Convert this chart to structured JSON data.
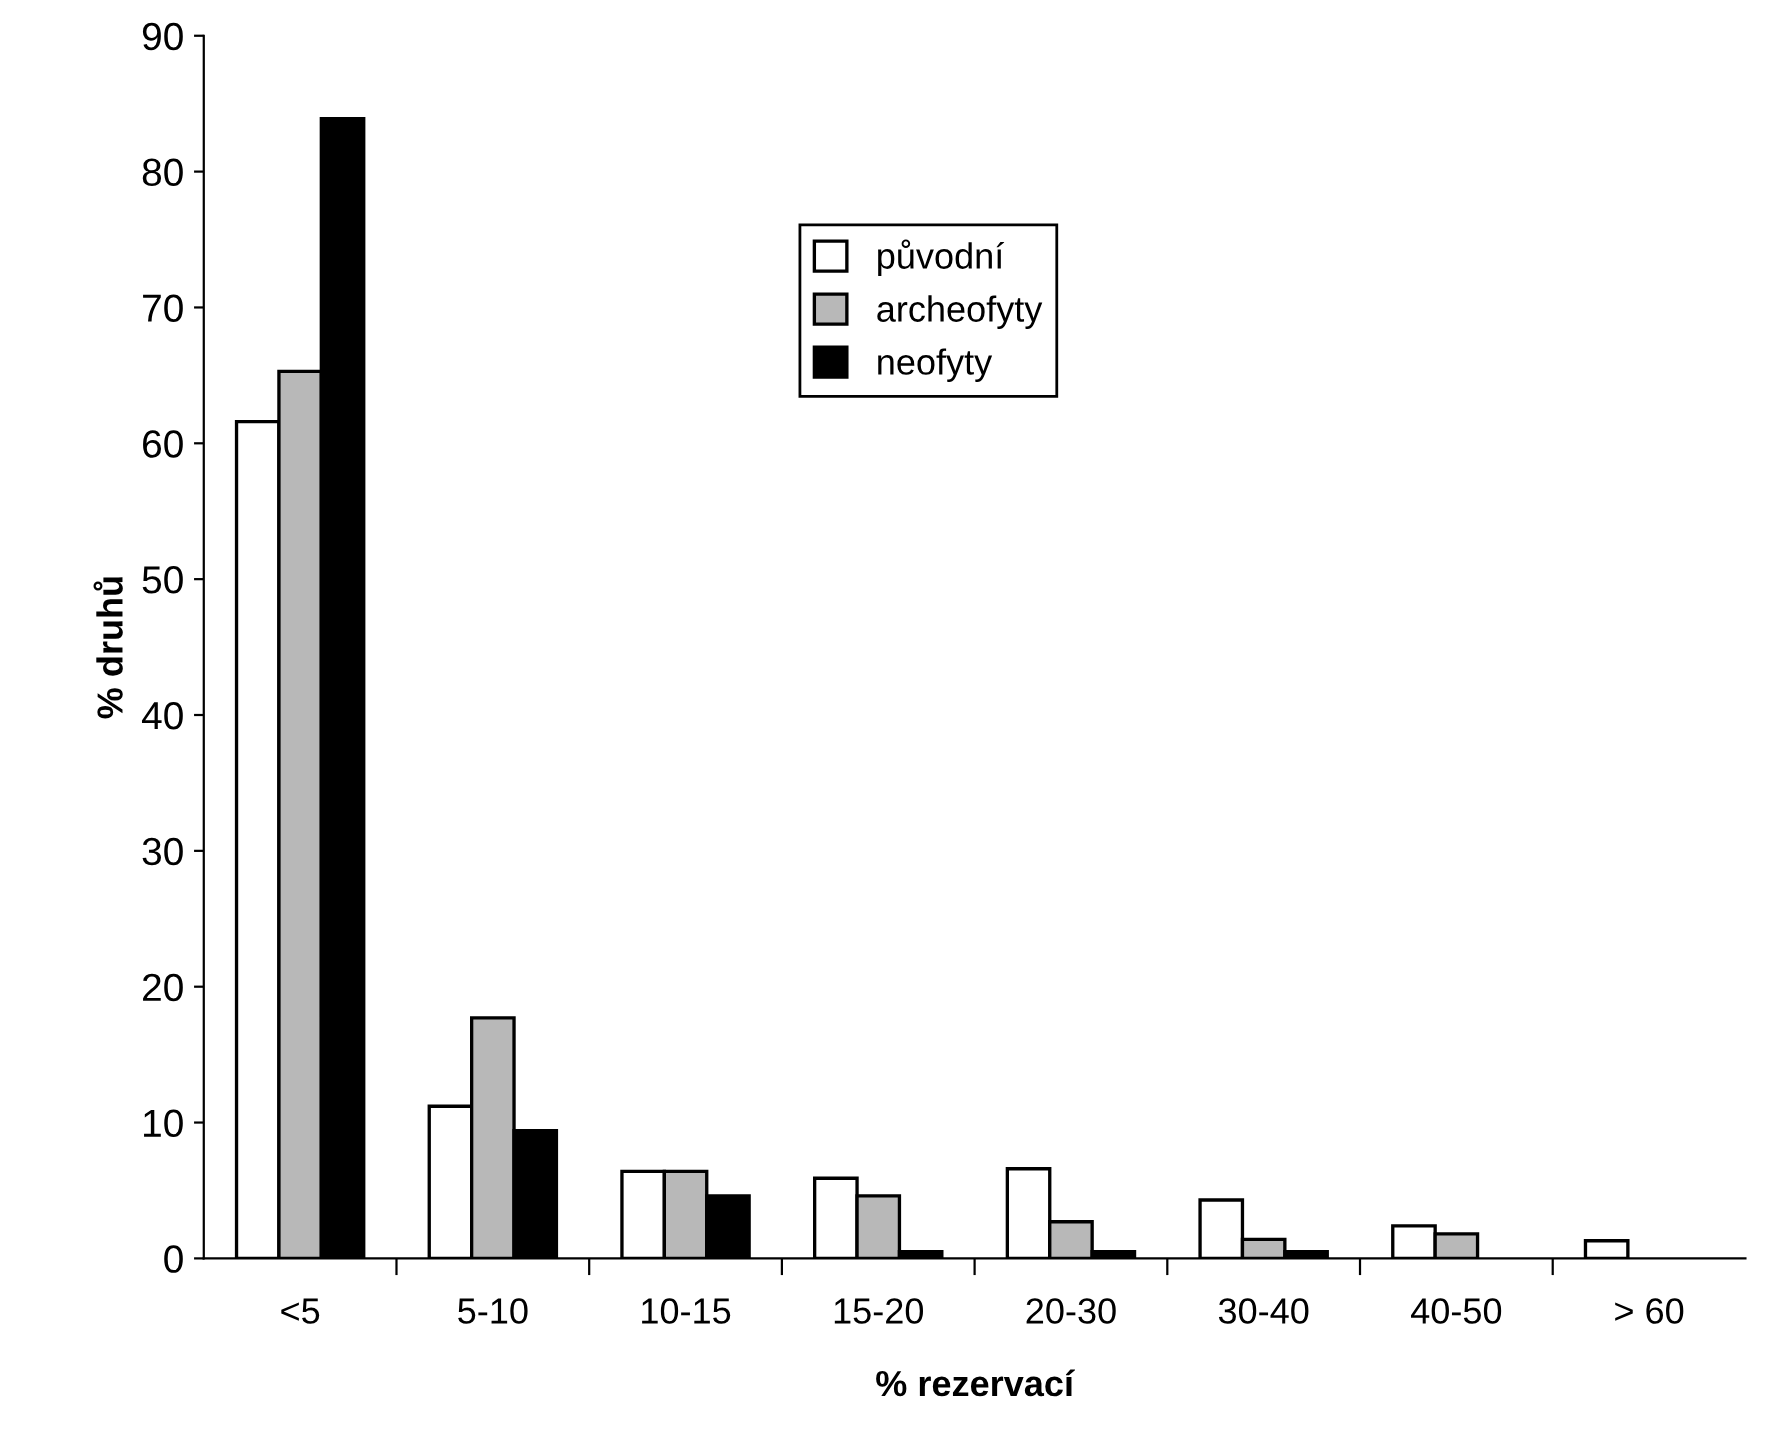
{
  "chart_data": {
    "type": "bar",
    "xlabel": "% rezervací",
    "ylabel": "% druhů",
    "categories": [
      "<5",
      "5-10",
      "10-15",
      "15-20",
      "20-30",
      "30-40",
      "40-50",
      "> 60"
    ],
    "series": [
      {
        "name": "původní",
        "color": "#ffffff",
        "values": [
          61.6,
          11.2,
          6.4,
          5.9,
          6.6,
          4.3,
          2.4,
          1.3
        ]
      },
      {
        "name": "archeofyty",
        "color": "#b8b8b8",
        "values": [
          65.3,
          17.7,
          6.4,
          4.6,
          2.7,
          1.4,
          1.8,
          null
        ]
      },
      {
        "name": "neofyty",
        "color": "#000000",
        "values": [
          83.9,
          9.4,
          4.6,
          0.5,
          0.5,
          0.5,
          null,
          null
        ]
      }
    ],
    "ylim": [
      0,
      90
    ],
    "yticks": [
      0,
      10,
      20,
      30,
      40,
      50,
      60,
      70,
      80,
      90
    ],
    "grid": false,
    "legend": "top"
  }
}
